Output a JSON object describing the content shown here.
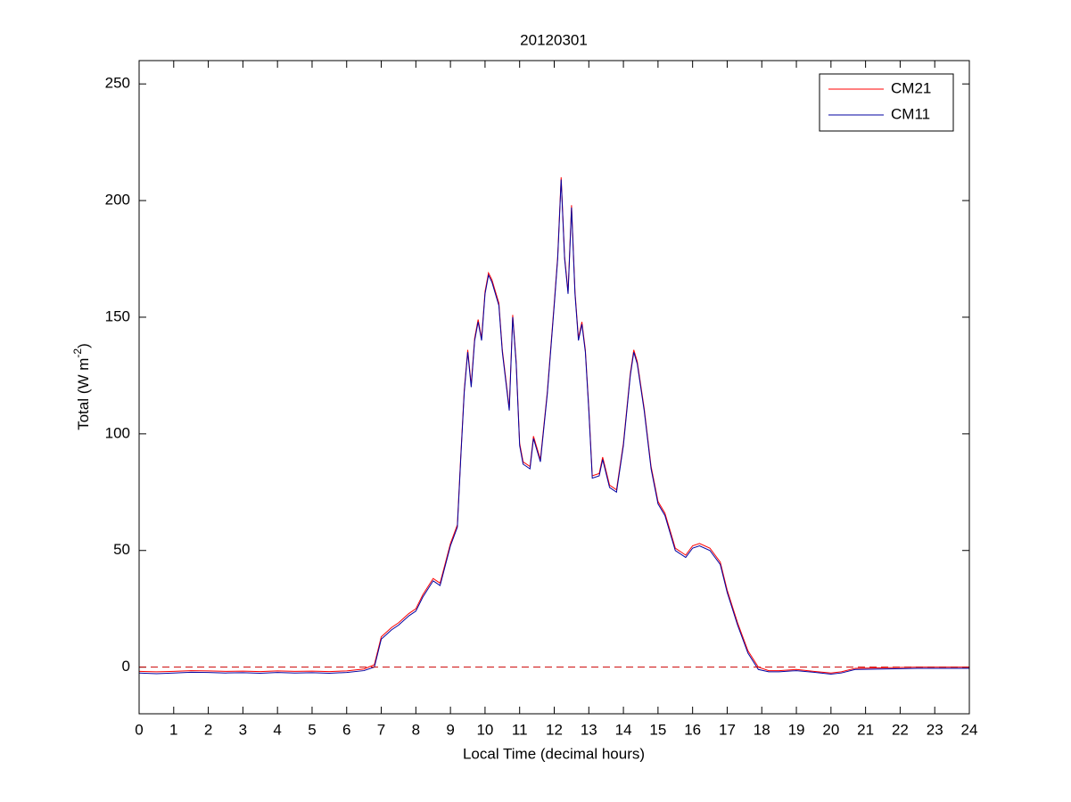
{
  "chart_data": {
    "type": "line",
    "title": "20120301",
    "xlabel": "Local Time (decimal hours)",
    "ylabel": [
      "Total (W m",
      "-2",
      ")"
    ],
    "x": [
      0,
      0.5,
      1,
      1.5,
      2,
      2.5,
      3,
      3.5,
      4,
      4.5,
      5,
      5.5,
      6,
      6.5,
      6.8,
      7,
      7.3,
      7.5,
      7.8,
      8,
      8.2,
      8.5,
      8.7,
      9,
      9.2,
      9.3,
      9.4,
      9.5,
      9.6,
      9.7,
      9.8,
      9.9,
      10,
      10.1,
      10.2,
      10.4,
      10.5,
      10.7,
      10.8,
      10.9,
      11,
      11.1,
      11.3,
      11.4,
      11.6,
      11.8,
      12,
      12.1,
      12.2,
      12.3,
      12.4,
      12.5,
      12.6,
      12.7,
      12.8,
      12.9,
      13,
      13.1,
      13.3,
      13.4,
      13.6,
      13.8,
      14,
      14.2,
      14.3,
      14.4,
      14.6,
      14.8,
      15,
      15.2,
      15.5,
      15.8,
      16,
      16.2,
      16.5,
      16.8,
      17,
      17.3,
      17.6,
      17.9,
      18.2,
      18.5,
      19,
      19.5,
      20,
      20.3,
      20.7,
      21.5,
      22.5,
      23.5,
      24
    ],
    "series": [
      {
        "name": "CM21",
        "color": "#ff0000",
        "values": [
          -1.8,
          -2,
          -1.8,
          -1.5,
          -1.6,
          -1.8,
          -1.7,
          -1.9,
          -1.6,
          -1.8,
          -1.7,
          -1.9,
          -1.6,
          -0.8,
          1,
          13,
          17,
          19,
          23,
          25,
          31,
          38,
          36,
          53,
          61,
          91,
          119,
          136,
          121,
          141,
          149,
          141,
          161,
          169,
          166,
          156,
          136,
          111,
          151,
          131,
          96,
          88,
          86,
          99,
          89,
          118,
          156,
          176,
          210,
          176,
          161,
          198,
          161,
          141,
          148,
          136,
          111,
          82,
          83,
          90,
          78,
          76,
          96,
          126,
          136,
          131,
          111,
          86,
          71,
          66,
          51,
          48,
          52,
          53,
          51,
          45,
          33,
          19,
          7,
          0,
          -1.5,
          -1.5,
          -1,
          -1.8,
          -2.5,
          -2,
          -0.5,
          -0.3,
          0,
          0,
          0
        ]
      },
      {
        "name": "CM11",
        "color": "#0000a0",
        "values": [
          -2.5,
          -2.8,
          -2.5,
          -2.2,
          -2.3,
          -2.5,
          -2.4,
          -2.6,
          -2.3,
          -2.5,
          -2.4,
          -2.6,
          -2.3,
          -1.5,
          0,
          12,
          16,
          18,
          22,
          24,
          30,
          37,
          35,
          52,
          60,
          90,
          118,
          135,
          120,
          140,
          148,
          140,
          160,
          168,
          165,
          155,
          135,
          110,
          150,
          130,
          95,
          87,
          85,
          98,
          88,
          117,
          155,
          175,
          209,
          175,
          160,
          197,
          160,
          140,
          147,
          135,
          110,
          81,
          82,
          89,
          77,
          75,
          95,
          125,
          135,
          130,
          110,
          85,
          70,
          65,
          50,
          47,
          51,
          52,
          50,
          44,
          32,
          18,
          6,
          -1,
          -2,
          -2,
          -1.5,
          -2.2,
          -3,
          -2.5,
          -1,
          -0.8,
          -0.5,
          -0.5,
          -0.5
        ]
      }
    ],
    "hline": 0,
    "hline_color": "#cc0000",
    "xlim": [
      0,
      24
    ],
    "xticks": [
      0,
      1,
      2,
      3,
      4,
      5,
      6,
      7,
      8,
      9,
      10,
      11,
      12,
      13,
      14,
      15,
      16,
      17,
      18,
      19,
      20,
      21,
      22,
      23,
      24
    ],
    "ylim": [
      -20,
      260
    ],
    "yticks": [
      0,
      50,
      100,
      150,
      200,
      250
    ],
    "legend": "upper right"
  }
}
